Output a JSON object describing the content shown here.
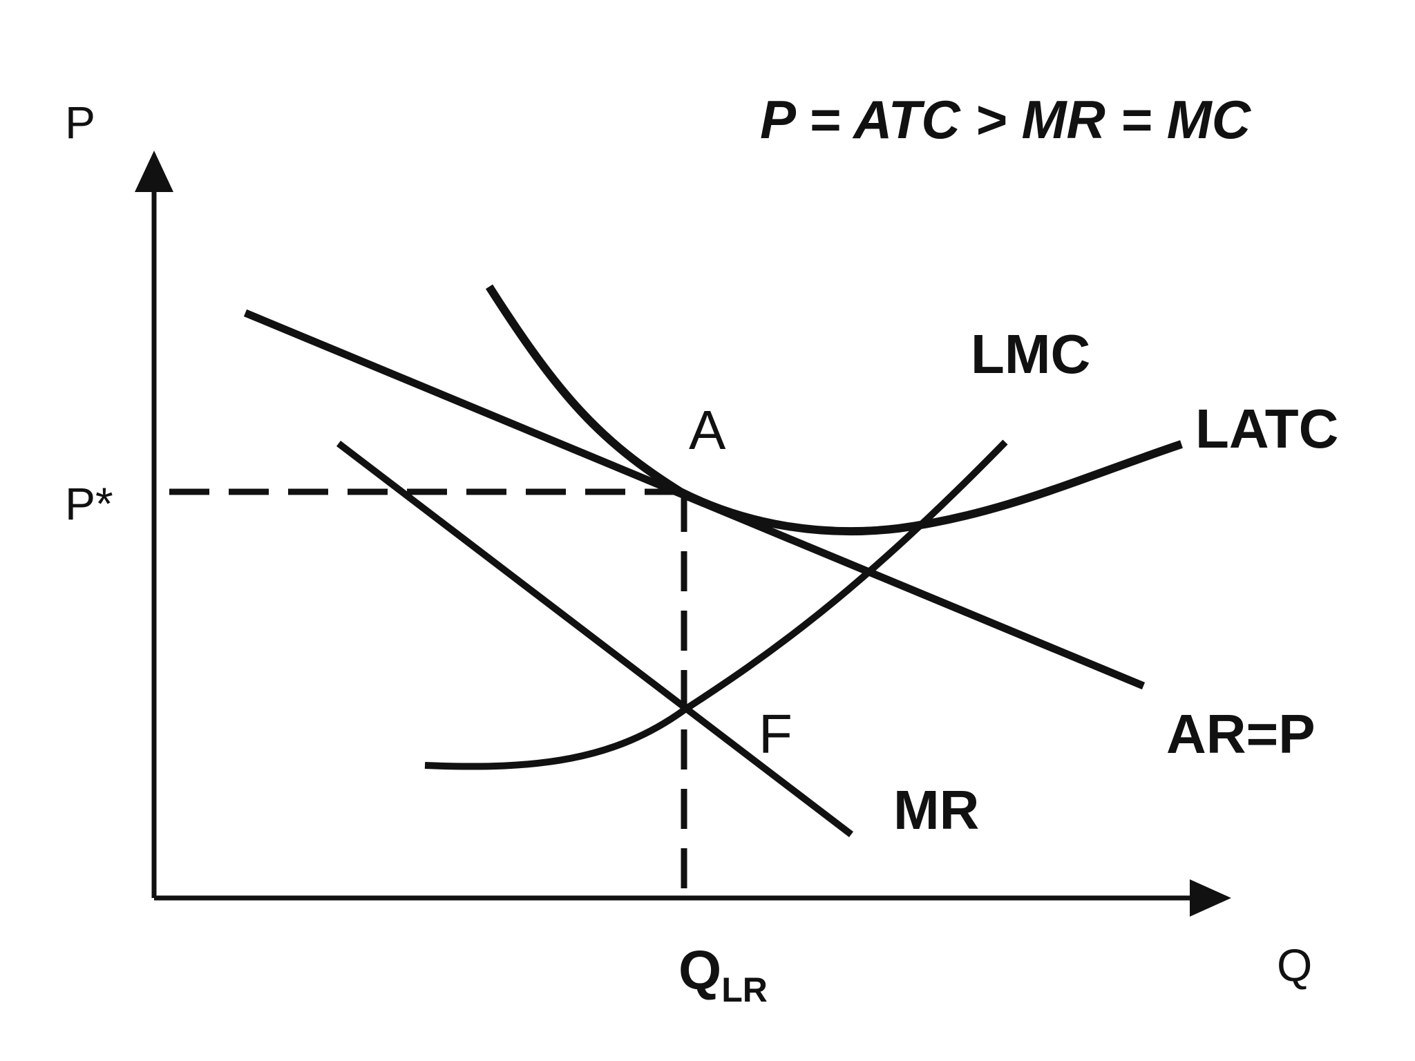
{
  "diagram": {
    "condition": "P = ATC > MR = MC",
    "axes": {
      "y_label": "P",
      "x_label": "Q"
    },
    "price_label": "P*",
    "quantity_label": {
      "main": "Q",
      "subscript": "LR"
    },
    "curves": {
      "lmc": "LMC",
      "latc": "LATC",
      "ar": "AR=P",
      "mr": "MR"
    },
    "points": {
      "a": "A",
      "f": "F"
    }
  }
}
